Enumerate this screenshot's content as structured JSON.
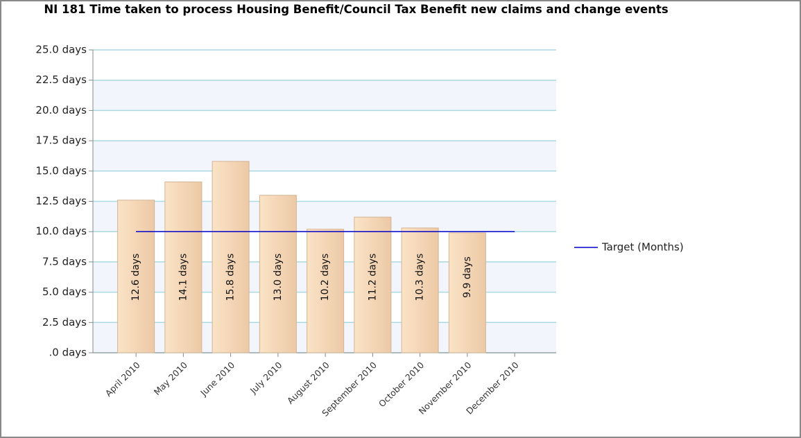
{
  "chart_data": {
    "type": "bar",
    "title": "NI 181 Time taken to process Housing Benefit/Council Tax Benefit new claims and change events",
    "categories": [
      "April 2010",
      "May 2010",
      "June 2010",
      "July 2010",
      "August 2010",
      "September 2010",
      "October 2010",
      "November 2010",
      "December 2010"
    ],
    "series": [
      {
        "type": "bar",
        "color": "#e8c7a4",
        "values": [
          12.6,
          14.1,
          15.8,
          13.0,
          10.2,
          11.2,
          10.3,
          9.9,
          null
        ],
        "value_labels": [
          "12.6 days",
          "14.1 days",
          "15.8 days",
          "13.0 days",
          "10.2 days",
          "11.2 days",
          "10.3 days",
          "9.9 days",
          null
        ]
      },
      {
        "type": "line",
        "name": "Target (Months)",
        "color": "#0000cc",
        "values": [
          10,
          10,
          10,
          10,
          10,
          10,
          10,
          10,
          10
        ]
      }
    ],
    "ylim": [
      0,
      25
    ],
    "yticks": [
      {
        "value": 0,
        "label": ".0 days"
      },
      {
        "value": 2.5,
        "label": "2.5 days"
      },
      {
        "value": 5,
        "label": "5.0 days"
      },
      {
        "value": 7.5,
        "label": "7.5 days"
      },
      {
        "value": 10,
        "label": "10.0 days"
      },
      {
        "value": 12.5,
        "label": "12.5 days"
      },
      {
        "value": 15,
        "label": "15.0 days"
      },
      {
        "value": 17.5,
        "label": "17.5 days"
      },
      {
        "value": 20,
        "label": "20.0 days"
      },
      {
        "value": 22.5,
        "label": "22.5 days"
      },
      {
        "value": 25,
        "label": "25.0 days"
      }
    ],
    "grid": true,
    "legend": "right"
  }
}
